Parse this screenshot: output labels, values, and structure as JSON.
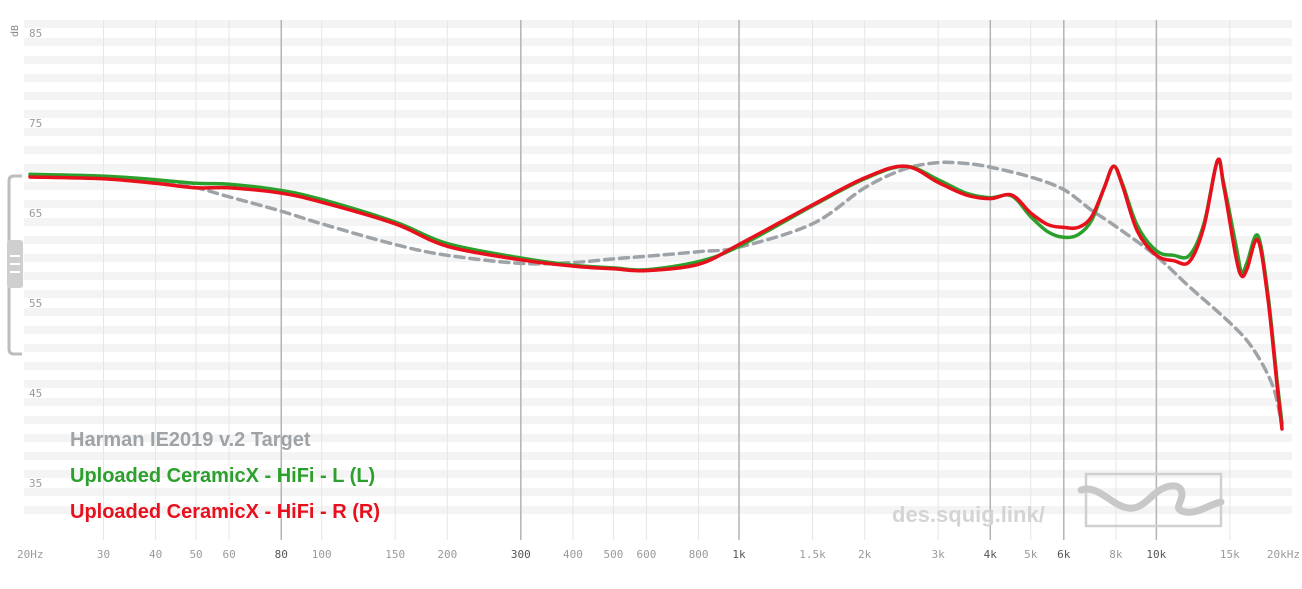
{
  "chart_data": {
    "type": "line",
    "xscale": "log",
    "xlim": [
      20,
      20000
    ],
    "ylim": [
      30,
      86
    ],
    "ylabel": "dB",
    "x_ticks": [
      {
        "v": 20,
        "label": "20Hz",
        "major": false
      },
      {
        "v": 30,
        "label": "30",
        "major": false
      },
      {
        "v": 40,
        "label": "40",
        "major": false
      },
      {
        "v": 50,
        "label": "50",
        "major": false
      },
      {
        "v": 60,
        "label": "60",
        "major": false
      },
      {
        "v": 80,
        "label": "80",
        "major": true
      },
      {
        "v": 100,
        "label": "100",
        "major": false
      },
      {
        "v": 150,
        "label": "150",
        "major": false
      },
      {
        "v": 200,
        "label": "200",
        "major": false
      },
      {
        "v": 300,
        "label": "300",
        "major": true
      },
      {
        "v": 400,
        "label": "400",
        "major": false
      },
      {
        "v": 500,
        "label": "500",
        "major": false
      },
      {
        "v": 600,
        "label": "600",
        "major": false
      },
      {
        "v": 800,
        "label": "800",
        "major": false
      },
      {
        "v": 1000,
        "label": "1k",
        "major": true
      },
      {
        "v": 1500,
        "label": "1.5k",
        "major": false
      },
      {
        "v": 2000,
        "label": "2k",
        "major": false
      },
      {
        "v": 3000,
        "label": "3k",
        "major": false
      },
      {
        "v": 4000,
        "label": "4k",
        "major": true
      },
      {
        "v": 5000,
        "label": "5k",
        "major": false
      },
      {
        "v": 6000,
        "label": "6k",
        "major": true
      },
      {
        "v": 8000,
        "label": "8k",
        "major": false
      },
      {
        "v": 10000,
        "label": "10k",
        "major": true
      },
      {
        "v": 15000,
        "label": "15k",
        "major": false
      },
      {
        "v": 20000,
        "label": "20kHz",
        "major": false
      }
    ],
    "y_ticks": [
      {
        "v": 85,
        "label": "85"
      },
      {
        "v": 75,
        "label": "75"
      },
      {
        "v": 65,
        "label": "65"
      },
      {
        "v": 55,
        "label": "55"
      },
      {
        "v": 45,
        "label": "45"
      },
      {
        "v": 35,
        "label": "35"
      }
    ],
    "series": [
      {
        "name": "Harman IE2019 v.2 Target",
        "color": "#9ea3a8",
        "dashed": true,
        "points": [
          [
            20,
            69.2
          ],
          [
            30,
            69.0
          ],
          [
            40,
            68.5
          ],
          [
            50,
            67.8
          ],
          [
            60,
            66.8
          ],
          [
            80,
            65.2
          ],
          [
            100,
            63.8
          ],
          [
            150,
            61.5
          ],
          [
            200,
            60.3
          ],
          [
            300,
            59.4
          ],
          [
            400,
            59.5
          ],
          [
            500,
            59.9
          ],
          [
            600,
            60.2
          ],
          [
            800,
            60.7
          ],
          [
            1000,
            61.2
          ],
          [
            1500,
            63.8
          ],
          [
            2000,
            67.8
          ],
          [
            2500,
            69.9
          ],
          [
            3000,
            70.6
          ],
          [
            3500,
            70.5
          ],
          [
            4000,
            70.1
          ],
          [
            5000,
            69.0
          ],
          [
            6000,
            67.6
          ],
          [
            7000,
            65.3
          ],
          [
            8000,
            63.5
          ],
          [
            10000,
            60.2
          ],
          [
            12000,
            56.8
          ],
          [
            15000,
            52.8
          ],
          [
            17000,
            50.0
          ],
          [
            19000,
            45.8
          ],
          [
            20000,
            41.3
          ]
        ]
      },
      {
        "name": "Uploaded CeramicX - HiFi - L (L)",
        "color": "#2ca02c",
        "dashed": false,
        "points": [
          [
            20,
            69.3
          ],
          [
            30,
            69.1
          ],
          [
            40,
            68.7
          ],
          [
            50,
            68.3
          ],
          [
            60,
            68.2
          ],
          [
            80,
            67.5
          ],
          [
            100,
            66.5
          ],
          [
            150,
            64.0
          ],
          [
            200,
            61.6
          ],
          [
            300,
            60.0
          ],
          [
            400,
            59.2
          ],
          [
            500,
            58.9
          ],
          [
            600,
            58.7
          ],
          [
            800,
            59.6
          ],
          [
            1000,
            61.3
          ],
          [
            1500,
            65.8
          ],
          [
            2000,
            68.8
          ],
          [
            2500,
            70.2
          ],
          [
            3000,
            68.7
          ],
          [
            3500,
            67.2
          ],
          [
            4000,
            66.7
          ],
          [
            4500,
            66.9
          ],
          [
            5000,
            64.6
          ],
          [
            5500,
            62.9
          ],
          [
            6000,
            62.3
          ],
          [
            6500,
            62.6
          ],
          [
            7000,
            64.2
          ],
          [
            7500,
            67.8
          ],
          [
            7900,
            70.2
          ],
          [
            8300,
            68.2
          ],
          [
            9000,
            63.6
          ],
          [
            10000,
            60.8
          ],
          [
            11000,
            60.3
          ],
          [
            12000,
            60.3
          ],
          [
            13000,
            63.8
          ],
          [
            14000,
            70.8
          ],
          [
            14500,
            68.3
          ],
          [
            15500,
            61.5
          ],
          [
            16000,
            58.4
          ],
          [
            16500,
            59.5
          ],
          [
            17500,
            62.5
          ],
          [
            18500,
            56.0
          ],
          [
            19500,
            46.0
          ],
          [
            20000,
            41.6
          ]
        ]
      },
      {
        "name": "Uploaded CeramicX - HiFi - R (R)",
        "color": "#e8101d",
        "dashed": false,
        "points": [
          [
            20,
            69.0
          ],
          [
            30,
            68.8
          ],
          [
            40,
            68.3
          ],
          [
            50,
            67.8
          ],
          [
            60,
            67.8
          ],
          [
            80,
            67.2
          ],
          [
            100,
            66.2
          ],
          [
            150,
            63.8
          ],
          [
            200,
            61.3
          ],
          [
            300,
            59.8
          ],
          [
            400,
            59.1
          ],
          [
            500,
            58.8
          ],
          [
            600,
            58.6
          ],
          [
            800,
            59.3
          ],
          [
            1000,
            61.5
          ],
          [
            1500,
            65.9
          ],
          [
            2000,
            68.9
          ],
          [
            2500,
            70.2
          ],
          [
            3000,
            68.4
          ],
          [
            3500,
            67.0
          ],
          [
            4000,
            66.6
          ],
          [
            4500,
            67.0
          ],
          [
            5000,
            65.0
          ],
          [
            5500,
            63.7
          ],
          [
            6000,
            63.4
          ],
          [
            6500,
            63.4
          ],
          [
            7000,
            64.6
          ],
          [
            7500,
            67.8
          ],
          [
            7900,
            70.2
          ],
          [
            8300,
            68.0
          ],
          [
            9000,
            63.0
          ],
          [
            10000,
            60.3
          ],
          [
            11000,
            59.7
          ],
          [
            12000,
            59.6
          ],
          [
            13000,
            63.5
          ],
          [
            14000,
            70.8
          ],
          [
            14500,
            68.0
          ],
          [
            15500,
            60.2
          ],
          [
            16000,
            58.0
          ],
          [
            16500,
            58.8
          ],
          [
            17500,
            62.0
          ],
          [
            18500,
            55.5
          ],
          [
            19500,
            45.5
          ],
          [
            20000,
            41.0
          ]
        ]
      }
    ]
  },
  "legend": {
    "target": "Harman IE2019 v.2 Target",
    "left": "Uploaded CeramicX - HiFi - L (L)",
    "right": "Uploaded CeramicX - HiFi - R (R)"
  },
  "watermark": "des.squig.link/",
  "colors": {
    "target": "#9ea3a8",
    "left": "#2ca02c",
    "right": "#e8101d",
    "grid_minor": "#e6e6e6",
    "grid_major": "#b3b3b3",
    "band": "#f4f4f4"
  }
}
